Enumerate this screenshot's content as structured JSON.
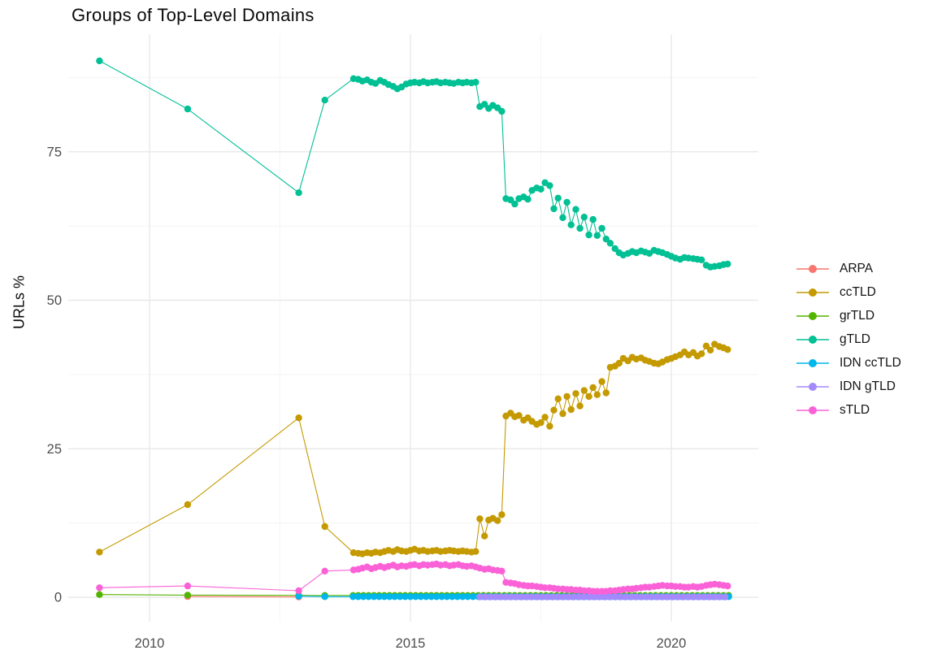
{
  "page": {
    "background": "#ffffff"
  },
  "styles": {
    "grid_major": "#e9e9e9",
    "grid_minor": "#f4f4f4",
    "tick_color": "#4d4d4d",
    "title_color": "#0a0a0a"
  },
  "chart_data": {
    "type": "line",
    "title": "Groups of Top-Level Domains",
    "xlabel": "",
    "ylabel": "URLs %",
    "grid": true,
    "legend_position": "right",
    "x_axis": {
      "ticks": [
        2010,
        2015,
        2020
      ],
      "tick_labels": [
        "2010",
        "2015",
        "2020"
      ],
      "minor_ticks": [
        2012.5,
        2017.5
      ],
      "range": [
        2008.44,
        2021.67
      ]
    },
    "y_axis": {
      "ticks": [
        0,
        25,
        50,
        75
      ],
      "tick_labels": [
        "0",
        "25",
        "50",
        "75"
      ],
      "minor_ticks": [
        12.5,
        37.5,
        62.5,
        87.5
      ],
      "range": [
        -4.1,
        94.8
      ]
    },
    "series": [
      {
        "name": "ARPA",
        "color": "#F8766D",
        "points": [
          [
            2010.73,
            0.12
          ],
          [
            2012.86,
            0.06
          ]
        ]
      },
      {
        "name": "ccTLD",
        "color": "#C49A00",
        "points": [
          [
            2009.04,
            7.6
          ],
          [
            2010.73,
            15.6
          ],
          [
            2012.86,
            30.2
          ],
          [
            2013.36,
            11.9
          ],
          [
            2013.91,
            7.5
          ],
          [
            2014.0,
            7.4
          ],
          [
            2014.08,
            7.3
          ],
          [
            2014.17,
            7.5
          ],
          [
            2014.25,
            7.4
          ],
          [
            2014.33,
            7.6
          ],
          [
            2014.42,
            7.5
          ],
          [
            2014.5,
            7.7
          ],
          [
            2014.58,
            7.9
          ],
          [
            2014.67,
            7.7
          ],
          [
            2014.75,
            8.0
          ],
          [
            2014.83,
            7.8
          ],
          [
            2014.92,
            7.7
          ],
          [
            2015.0,
            7.9
          ],
          [
            2015.08,
            8.1
          ],
          [
            2015.17,
            7.8
          ],
          [
            2015.25,
            7.9
          ],
          [
            2015.33,
            7.7
          ],
          [
            2015.42,
            7.8
          ],
          [
            2015.5,
            7.9
          ],
          [
            2015.58,
            7.7
          ],
          [
            2015.67,
            7.8
          ],
          [
            2015.75,
            7.9
          ],
          [
            2015.83,
            7.8
          ],
          [
            2015.92,
            7.7
          ],
          [
            2016.0,
            7.8
          ],
          [
            2016.08,
            7.7
          ],
          [
            2016.17,
            7.6
          ],
          [
            2016.25,
            7.7
          ],
          [
            2016.33,
            13.2
          ],
          [
            2016.42,
            10.3
          ],
          [
            2016.5,
            13.0
          ],
          [
            2016.58,
            13.3
          ],
          [
            2016.67,
            12.9
          ],
          [
            2016.75,
            13.9
          ],
          [
            2016.83,
            30.5
          ],
          [
            2016.92,
            31.0
          ],
          [
            2017.0,
            30.4
          ],
          [
            2017.08,
            30.6
          ],
          [
            2017.17,
            29.8
          ],
          [
            2017.25,
            30.2
          ],
          [
            2017.33,
            29.6
          ],
          [
            2017.42,
            29.1
          ],
          [
            2017.5,
            29.4
          ],
          [
            2017.58,
            30.3
          ],
          [
            2017.67,
            28.8
          ],
          [
            2017.75,
            31.5
          ],
          [
            2017.83,
            33.4
          ],
          [
            2017.92,
            30.9
          ],
          [
            2018.0,
            33.8
          ],
          [
            2018.08,
            31.6
          ],
          [
            2018.17,
            34.3
          ],
          [
            2018.25,
            32.2
          ],
          [
            2018.33,
            34.8
          ],
          [
            2018.42,
            33.8
          ],
          [
            2018.5,
            35.3
          ],
          [
            2018.58,
            34.1
          ],
          [
            2018.67,
            36.3
          ],
          [
            2018.75,
            34.4
          ],
          [
            2018.83,
            38.7
          ],
          [
            2018.92,
            38.9
          ],
          [
            2019.0,
            39.4
          ],
          [
            2019.08,
            40.2
          ],
          [
            2019.17,
            39.8
          ],
          [
            2019.25,
            40.4
          ],
          [
            2019.33,
            40.1
          ],
          [
            2019.42,
            40.3
          ],
          [
            2019.5,
            39.9
          ],
          [
            2019.58,
            39.7
          ],
          [
            2019.67,
            39.4
          ],
          [
            2019.75,
            39.3
          ],
          [
            2019.83,
            39.6
          ],
          [
            2019.92,
            40.0
          ],
          [
            2020.0,
            40.2
          ],
          [
            2020.08,
            40.5
          ],
          [
            2020.17,
            40.8
          ],
          [
            2020.25,
            41.3
          ],
          [
            2020.33,
            40.8
          ],
          [
            2020.42,
            41.2
          ],
          [
            2020.5,
            40.6
          ],
          [
            2020.58,
            41.0
          ],
          [
            2020.67,
            42.3
          ],
          [
            2020.75,
            41.6
          ],
          [
            2020.83,
            42.6
          ],
          [
            2020.92,
            42.2
          ],
          [
            2021.0,
            42.0
          ],
          [
            2021.08,
            41.7
          ]
        ]
      },
      {
        "name": "grTLD",
        "color": "#53B400",
        "points": [
          [
            2009.04,
            0.45
          ],
          [
            2010.73,
            0.35
          ],
          [
            2012.86,
            0.32
          ],
          [
            2013.36,
            0.3
          ]
        ],
        "runs": [
          {
            "from": 2013.9,
            "to": 2021.1,
            "step": 0.1,
            "value": 0.3
          }
        ]
      },
      {
        "name": "gTLD",
        "color": "#00C094",
        "points": [
          [
            2009.04,
            90.3
          ],
          [
            2010.73,
            82.2
          ],
          [
            2012.86,
            68.1
          ],
          [
            2013.36,
            83.7
          ],
          [
            2013.91,
            87.3
          ],
          [
            2014.0,
            87.2
          ],
          [
            2014.08,
            86.9
          ],
          [
            2014.17,
            87.1
          ],
          [
            2014.25,
            86.7
          ],
          [
            2014.33,
            86.5
          ],
          [
            2014.42,
            87.0
          ],
          [
            2014.5,
            86.7
          ],
          [
            2014.58,
            86.3
          ],
          [
            2014.67,
            86.0
          ],
          [
            2014.75,
            85.6
          ],
          [
            2014.83,
            85.9
          ],
          [
            2014.92,
            86.4
          ],
          [
            2015.0,
            86.6
          ],
          [
            2015.08,
            86.7
          ],
          [
            2015.17,
            86.6
          ],
          [
            2015.25,
            86.8
          ],
          [
            2015.33,
            86.6
          ],
          [
            2015.42,
            86.7
          ],
          [
            2015.5,
            86.8
          ],
          [
            2015.58,
            86.6
          ],
          [
            2015.67,
            86.7
          ],
          [
            2015.75,
            86.6
          ],
          [
            2015.83,
            86.5
          ],
          [
            2015.92,
            86.7
          ],
          [
            2016.0,
            86.6
          ],
          [
            2016.08,
            86.7
          ],
          [
            2016.17,
            86.6
          ],
          [
            2016.25,
            86.7
          ],
          [
            2016.33,
            82.6
          ],
          [
            2016.42,
            83.0
          ],
          [
            2016.5,
            82.3
          ],
          [
            2016.58,
            82.8
          ],
          [
            2016.67,
            82.4
          ],
          [
            2016.75,
            81.8
          ],
          [
            2016.83,
            67.1
          ],
          [
            2016.92,
            66.9
          ],
          [
            2017.0,
            66.2
          ],
          [
            2017.08,
            67.1
          ],
          [
            2017.17,
            67.4
          ],
          [
            2017.25,
            67.0
          ],
          [
            2017.33,
            68.5
          ],
          [
            2017.42,
            68.9
          ],
          [
            2017.5,
            68.7
          ],
          [
            2017.58,
            69.8
          ],
          [
            2017.67,
            69.3
          ],
          [
            2017.75,
            65.4
          ],
          [
            2017.83,
            67.2
          ],
          [
            2017.92,
            63.9
          ],
          [
            2018.0,
            66.5
          ],
          [
            2018.08,
            62.7
          ],
          [
            2018.17,
            65.3
          ],
          [
            2018.25,
            62.1
          ],
          [
            2018.33,
            64.0
          ],
          [
            2018.42,
            61.0
          ],
          [
            2018.5,
            63.6
          ],
          [
            2018.58,
            60.9
          ],
          [
            2018.67,
            62.1
          ],
          [
            2018.75,
            60.3
          ],
          [
            2018.83,
            59.6
          ],
          [
            2018.92,
            58.7
          ],
          [
            2019.0,
            58.0
          ],
          [
            2019.08,
            57.6
          ],
          [
            2019.17,
            57.9
          ],
          [
            2019.25,
            58.2
          ],
          [
            2019.33,
            58.0
          ],
          [
            2019.42,
            58.3
          ],
          [
            2019.5,
            58.1
          ],
          [
            2019.58,
            57.9
          ],
          [
            2019.67,
            58.4
          ],
          [
            2019.75,
            58.2
          ],
          [
            2019.83,
            58.0
          ],
          [
            2019.92,
            57.7
          ],
          [
            2020.0,
            57.4
          ],
          [
            2020.08,
            57.1
          ],
          [
            2020.17,
            56.9
          ],
          [
            2020.25,
            57.2
          ],
          [
            2020.33,
            57.1
          ],
          [
            2020.42,
            57.0
          ],
          [
            2020.5,
            56.9
          ],
          [
            2020.58,
            56.8
          ],
          [
            2020.67,
            55.9
          ],
          [
            2020.75,
            55.6
          ],
          [
            2020.83,
            55.7
          ],
          [
            2020.92,
            55.8
          ],
          [
            2021.0,
            56.0
          ],
          [
            2021.08,
            56.1
          ]
        ]
      },
      {
        "name": "IDN ccTLD",
        "color": "#00B6EB",
        "points": [
          [
            2012.86,
            0.18
          ],
          [
            2013.36,
            0.1
          ]
        ],
        "runs": [
          {
            "from": 2013.9,
            "to": 2021.1,
            "step": 0.1,
            "value": 0.1
          }
        ]
      },
      {
        "name": "IDN gTLD",
        "color": "#A58AFF",
        "runs": [
          {
            "from": 2016.33,
            "to": 2021.08,
            "step": 0.1,
            "value": 0.05
          }
        ]
      },
      {
        "name": "sTLD",
        "color": "#FB61D7",
        "points": [
          [
            2009.04,
            1.6
          ],
          [
            2010.73,
            1.9
          ],
          [
            2012.86,
            1.1
          ],
          [
            2013.36,
            4.4
          ],
          [
            2013.91,
            4.6
          ],
          [
            2014.0,
            4.7
          ],
          [
            2014.08,
            4.9
          ],
          [
            2014.17,
            5.1
          ],
          [
            2014.25,
            4.8
          ],
          [
            2014.33,
            5.0
          ],
          [
            2014.42,
            5.2
          ],
          [
            2014.5,
            5.0
          ],
          [
            2014.58,
            5.2
          ],
          [
            2014.67,
            5.4
          ],
          [
            2014.75,
            5.1
          ],
          [
            2014.83,
            5.3
          ],
          [
            2014.92,
            5.2
          ],
          [
            2015.0,
            5.4
          ],
          [
            2015.08,
            5.5
          ],
          [
            2015.17,
            5.3
          ],
          [
            2015.25,
            5.5
          ],
          [
            2015.33,
            5.4
          ],
          [
            2015.42,
            5.5
          ],
          [
            2015.5,
            5.6
          ],
          [
            2015.58,
            5.4
          ],
          [
            2015.67,
            5.5
          ],
          [
            2015.75,
            5.3
          ],
          [
            2015.83,
            5.4
          ],
          [
            2015.92,
            5.5
          ],
          [
            2016.0,
            5.3
          ],
          [
            2016.08,
            5.2
          ],
          [
            2016.17,
            5.3
          ],
          [
            2016.25,
            5.1
          ],
          [
            2016.33,
            4.9
          ],
          [
            2016.42,
            4.7
          ],
          [
            2016.5,
            4.8
          ],
          [
            2016.58,
            4.6
          ],
          [
            2016.67,
            4.5
          ],
          [
            2016.75,
            4.4
          ],
          [
            2016.83,
            2.5
          ],
          [
            2016.92,
            2.4
          ],
          [
            2017.0,
            2.3
          ],
          [
            2017.08,
            2.1
          ],
          [
            2017.17,
            2.0
          ],
          [
            2017.25,
            1.9
          ],
          [
            2017.33,
            1.9
          ],
          [
            2017.42,
            1.8
          ],
          [
            2017.5,
            1.7
          ],
          [
            2017.58,
            1.6
          ],
          [
            2017.67,
            1.6
          ],
          [
            2017.75,
            1.5
          ],
          [
            2017.83,
            1.4
          ],
          [
            2017.92,
            1.4
          ],
          [
            2018.0,
            1.3
          ],
          [
            2018.08,
            1.3
          ],
          [
            2018.17,
            1.2
          ],
          [
            2018.25,
            1.2
          ],
          [
            2018.33,
            1.1
          ],
          [
            2018.42,
            1.1
          ],
          [
            2018.5,
            1.0
          ],
          [
            2018.58,
            1.0
          ],
          [
            2018.67,
            1.0
          ],
          [
            2018.75,
            1.0
          ],
          [
            2018.83,
            1.1
          ],
          [
            2018.92,
            1.1
          ],
          [
            2019.0,
            1.2
          ],
          [
            2019.08,
            1.3
          ],
          [
            2019.17,
            1.4
          ],
          [
            2019.25,
            1.4
          ],
          [
            2019.33,
            1.5
          ],
          [
            2019.42,
            1.6
          ],
          [
            2019.5,
            1.7
          ],
          [
            2019.58,
            1.7
          ],
          [
            2019.67,
            1.8
          ],
          [
            2019.75,
            1.9
          ],
          [
            2019.83,
            2.0
          ],
          [
            2019.92,
            1.9
          ],
          [
            2020.0,
            1.9
          ],
          [
            2020.08,
            1.8
          ],
          [
            2020.17,
            1.8
          ],
          [
            2020.25,
            1.7
          ],
          [
            2020.33,
            1.7
          ],
          [
            2020.42,
            1.8
          ],
          [
            2020.5,
            1.7
          ],
          [
            2020.58,
            1.8
          ],
          [
            2020.67,
            2.0
          ],
          [
            2020.75,
            2.1
          ],
          [
            2020.83,
            2.2
          ],
          [
            2020.92,
            2.1
          ],
          [
            2021.0,
            2.0
          ],
          [
            2021.08,
            1.9
          ]
        ]
      }
    ]
  }
}
